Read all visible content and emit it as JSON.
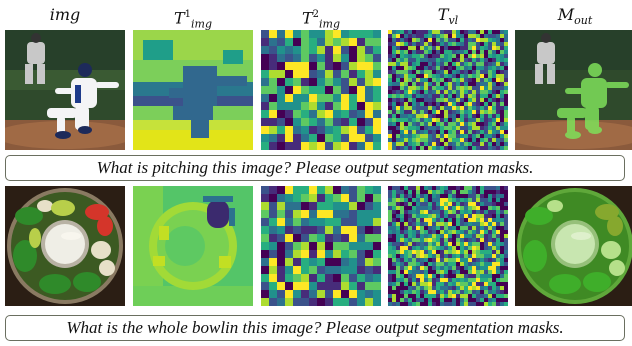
{
  "figure": {
    "columns": [
      {
        "key": "img",
        "base": "img",
        "sup": "",
        "sub": ""
      },
      {
        "key": "t1",
        "base": "T",
        "sup": "1",
        "sub": "img"
      },
      {
        "key": "t2",
        "base": "T",
        "sup": "2",
        "sub": "img"
      },
      {
        "key": "tvl",
        "base": "T",
        "sup": "",
        "sub": "vl"
      },
      {
        "key": "mout",
        "base": "M",
        "sup": "",
        "sub": "out"
      }
    ],
    "rows": [
      {
        "caption": "What is  pitching this image? Please output segmentation masks."
      },
      {
        "caption": "What is the whole bowlin this image? Please output segmentation masks."
      }
    ]
  },
  "colors": {
    "viridis_dark": "#440154",
    "viridis_mid": "#21918c",
    "viridis_bright": "#fde725",
    "mask_green": "#55c23a",
    "caption_border": "#6a6f60"
  }
}
